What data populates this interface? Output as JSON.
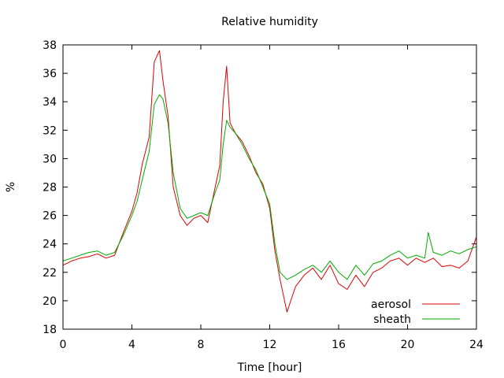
{
  "chart_data": {
    "type": "line",
    "title": "Relative humidity",
    "xlabel": "Time [hour]",
    "ylabel": "%",
    "xlim": [
      0,
      24
    ],
    "ylim": [
      18,
      38
    ],
    "x_ticks": [
      0,
      4,
      8,
      12,
      16,
      20,
      24
    ],
    "y_ticks": [
      18,
      20,
      22,
      24,
      26,
      28,
      30,
      32,
      34,
      36,
      38
    ],
    "grid": false,
    "legend_position": "bottom-right",
    "series": [
      {
        "name": "aerosol",
        "color": "#dd0000",
        "x": [
          0,
          0.5,
          1,
          1.5,
          2,
          2.5,
          3,
          3.5,
          4,
          4.3,
          4.6,
          5.0,
          5.3,
          5.6,
          5.8,
          6.1,
          6.4,
          6.8,
          7.2,
          7.6,
          8.0,
          8.4,
          8.8,
          9.1,
          9.3,
          9.5,
          9.7,
          10.0,
          10.4,
          10.8,
          11.2,
          11.6,
          12.0,
          12.3,
          12.6,
          13.0,
          13.5,
          14.0,
          14.5,
          15.0,
          15.5,
          16.0,
          16.5,
          17.0,
          17.5,
          18.0,
          18.5,
          19.0,
          19.5,
          20.0,
          20.5,
          21.0,
          21.5,
          22.0,
          22.5,
          23.0,
          23.5,
          24.0
        ],
        "values": [
          22.5,
          22.8,
          23.0,
          23.1,
          23.3,
          23.0,
          23.2,
          24.8,
          26.3,
          27.6,
          29.6,
          31.5,
          36.8,
          37.6,
          35.5,
          33.0,
          28.0,
          26.0,
          25.3,
          25.8,
          26.0,
          25.5,
          27.8,
          29.5,
          34.0,
          36.5,
          32.5,
          31.8,
          31.2,
          30.2,
          29.0,
          28.2,
          26.5,
          23.5,
          21.5,
          19.2,
          21.0,
          21.8,
          22.3,
          21.5,
          22.5,
          21.2,
          20.8,
          21.8,
          21.0,
          22.0,
          22.3,
          22.8,
          23.0,
          22.5,
          23.0,
          22.7,
          23.0,
          22.4,
          22.5,
          22.3,
          22.8,
          24.5
        ]
      },
      {
        "name": "sheath",
        "color": "#00aa00",
        "x": [
          0,
          0.5,
          1,
          1.5,
          2,
          2.5,
          3,
          3.5,
          4,
          4.3,
          4.6,
          5.0,
          5.3,
          5.6,
          5.8,
          6.1,
          6.4,
          6.8,
          7.2,
          7.6,
          8.0,
          8.4,
          8.8,
          9.1,
          9.3,
          9.5,
          9.7,
          10.0,
          10.4,
          10.8,
          11.2,
          11.6,
          12.0,
          12.3,
          12.6,
          13.0,
          13.5,
          14.0,
          14.5,
          15.0,
          15.5,
          16.0,
          16.5,
          17.0,
          17.5,
          18.0,
          18.5,
          19.0,
          19.5,
          20.0,
          20.5,
          21.0,
          21.2,
          21.5,
          22.0,
          22.5,
          23.0,
          23.5,
          24.0
        ],
        "values": [
          22.8,
          23.0,
          23.2,
          23.4,
          23.5,
          23.2,
          23.4,
          24.6,
          26.0,
          27.0,
          28.5,
          30.5,
          33.8,
          34.5,
          34.2,
          32.5,
          29.0,
          26.5,
          25.8,
          26.0,
          26.2,
          26.0,
          27.5,
          28.5,
          31.0,
          32.7,
          32.2,
          31.8,
          31.0,
          30.0,
          29.2,
          28.0,
          26.8,
          24.0,
          22.0,
          21.5,
          21.8,
          22.2,
          22.5,
          22.0,
          22.8,
          22.0,
          21.5,
          22.5,
          21.8,
          22.6,
          22.8,
          23.2,
          23.5,
          23.0,
          23.2,
          23.0,
          24.8,
          23.4,
          23.2,
          23.5,
          23.3,
          23.6,
          23.8
        ]
      }
    ]
  }
}
